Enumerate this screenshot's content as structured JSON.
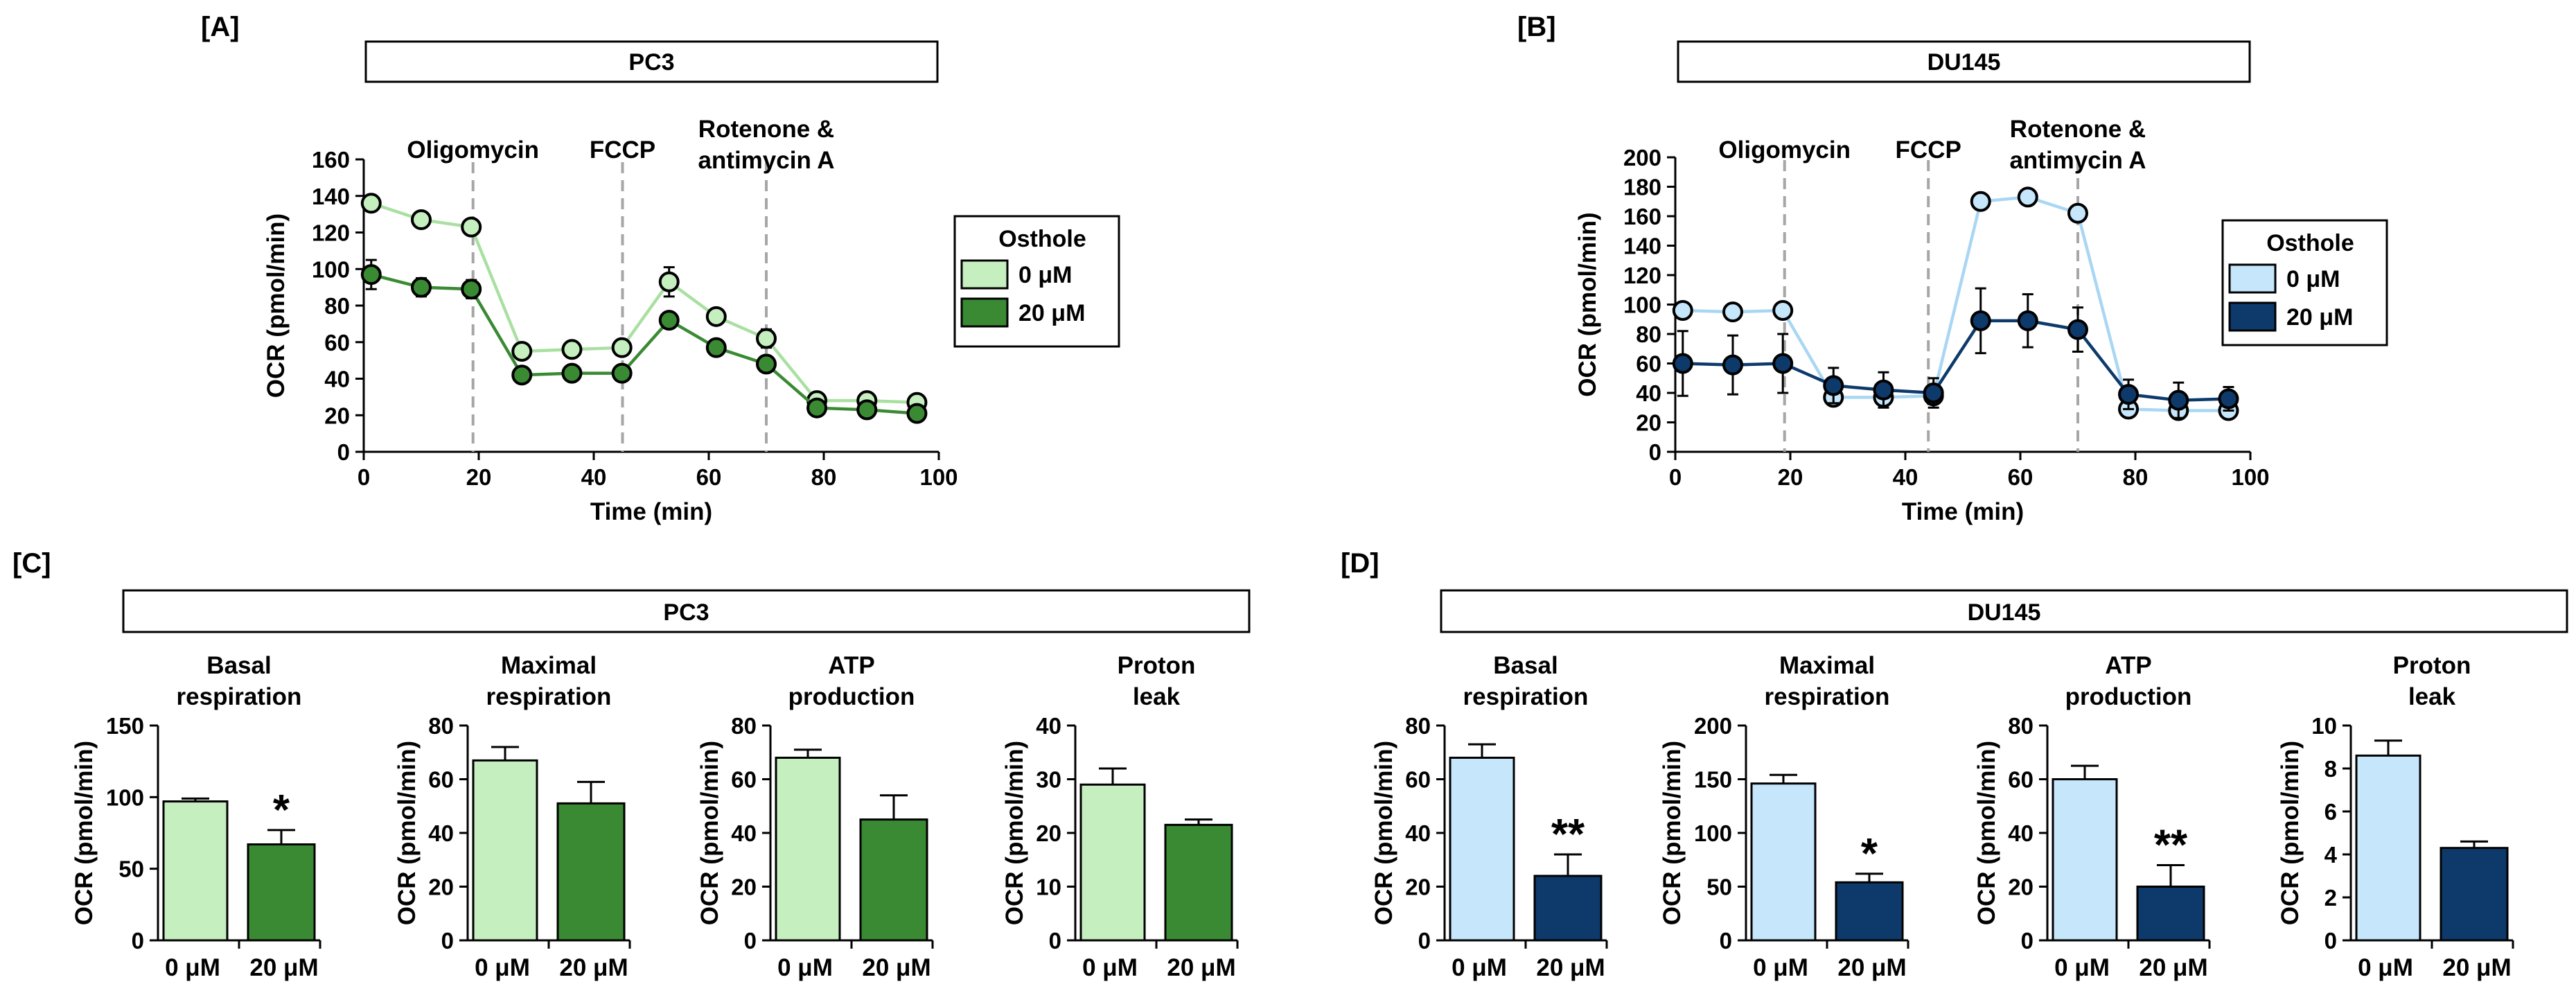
{
  "colors": {
    "pc3_light": "#c6efc0",
    "pc3_dark": "#3a8a34",
    "pc3_light_line": "#a9e0a1",
    "du_light": "#c5e6fb",
    "du_dark": "#0d3a6b",
    "du_light_line": "#a9d7f3",
    "vline": "#a6a6a6"
  },
  "chart_data": [
    {
      "id": "A",
      "panel_label": "[A]",
      "type": "line",
      "title": "PC3",
      "xlabel": "Time (min)",
      "ylabel": "OCR (pmol/min)",
      "xlim": [
        0,
        100
      ],
      "ylim": [
        0,
        160
      ],
      "xticks": [
        0,
        20,
        40,
        60,
        80,
        100
      ],
      "yticks": [
        0,
        20,
        40,
        60,
        80,
        100,
        120,
        140,
        160
      ],
      "x": [
        1.3,
        10,
        18.7,
        27.5,
        36.2,
        44.9,
        53.1,
        61.3,
        70,
        78.8,
        87.5,
        96.2
      ],
      "injections": [
        {
          "x": 19,
          "lines": [
            "Oligomycin"
          ]
        },
        {
          "x": 45,
          "lines": [
            "FCCP"
          ]
        },
        {
          "x": 70,
          "lines": [
            "Rotenone &",
            "antimycin A"
          ]
        }
      ],
      "legend": {
        "title": "Osthole",
        "position": "right"
      },
      "series": [
        {
          "name": "0 μM",
          "tone": "light",
          "values": [
            136,
            127,
            123,
            55,
            56,
            57,
            93,
            74,
            62,
            28,
            28,
            27
          ],
          "errors": [
            3,
            2,
            3,
            3,
            2,
            3,
            8,
            3,
            5,
            3,
            3,
            3
          ]
        },
        {
          "name": "20 μM",
          "tone": "dark",
          "values": [
            97,
            90,
            89,
            42,
            43,
            43,
            72,
            57,
            48,
            24,
            23,
            21
          ],
          "errors": [
            8,
            5,
            5,
            2,
            2,
            2,
            3,
            2,
            2,
            2,
            2,
            2
          ]
        }
      ]
    },
    {
      "id": "B",
      "panel_label": "[B]",
      "type": "line",
      "title": "DU145",
      "xlabel": "Time (min)",
      "ylabel": "OCR (pmol/min)",
      "xlim": [
        0,
        100
      ],
      "ylim": [
        0,
        200
      ],
      "xticks": [
        0,
        20,
        40,
        60,
        80,
        100
      ],
      "yticks": [
        0,
        20,
        40,
        60,
        80,
        100,
        120,
        140,
        160,
        180,
        200
      ],
      "x": [
        1.3,
        10,
        18.7,
        27.5,
        36.2,
        44.9,
        53.1,
        61.3,
        70,
        78.8,
        87.5,
        96.2
      ],
      "injections": [
        {
          "x": 19,
          "lines": [
            "Oligomycin"
          ]
        },
        {
          "x": 44,
          "lines": [
            "FCCP"
          ]
        },
        {
          "x": 70,
          "lines": [
            "Rotenone &",
            "antimycin A"
          ]
        }
      ],
      "legend": {
        "title": "Osthole",
        "position": "right"
      },
      "series": [
        {
          "name": "0 μM",
          "tone": "light",
          "values": [
            96,
            95,
            96,
            37,
            37,
            38,
            170,
            173,
            162,
            29,
            28,
            28
          ],
          "errors": [
            4,
            3,
            4,
            3,
            3,
            3,
            4,
            5,
            3,
            3,
            2,
            2
          ]
        },
        {
          "name": "20 μM",
          "tone": "dark",
          "values": [
            60,
            59,
            60,
            45,
            42,
            40,
            89,
            89,
            83,
            39,
            35,
            36
          ],
          "errors": [
            22,
            20,
            20,
            12,
            12,
            10,
            22,
            18,
            15,
            10,
            12,
            8
          ]
        }
      ]
    },
    {
      "id": "C",
      "panel_label": "[C]",
      "type": "bar",
      "title": "PC3",
      "palette": "pc3",
      "categories": [
        "0 μM",
        "20 μM"
      ],
      "ylabel": "OCR (pmol/min)",
      "subplots": [
        {
          "title": [
            "Basal",
            "respiration"
          ],
          "ylim": [
            0,
            150
          ],
          "yticks": [
            0,
            50,
            100,
            150
          ],
          "values": [
            97,
            67
          ],
          "errors": [
            2,
            10
          ],
          "sig": [
            "",
            "*"
          ]
        },
        {
          "title": [
            "Maximal",
            "respiration"
          ],
          "ylim": [
            0,
            80
          ],
          "yticks": [
            0,
            20,
            40,
            60,
            80
          ],
          "values": [
            67,
            51
          ],
          "errors": [
            5,
            8
          ],
          "sig": [
            "",
            ""
          ]
        },
        {
          "title": [
            "ATP",
            "production"
          ],
          "ylim": [
            0,
            80
          ],
          "yticks": [
            0,
            20,
            40,
            60,
            80
          ],
          "values": [
            68,
            45
          ],
          "errors": [
            3,
            9
          ],
          "sig": [
            "",
            ""
          ]
        },
        {
          "title": [
            "Proton",
            "leak"
          ],
          "ylim": [
            0,
            40
          ],
          "yticks": [
            0,
            10,
            20,
            30,
            40
          ],
          "values": [
            29,
            21.5
          ],
          "errors": [
            3,
            1
          ],
          "sig": [
            "",
            ""
          ]
        }
      ]
    },
    {
      "id": "D",
      "panel_label": "[D]",
      "type": "bar",
      "title": "DU145",
      "palette": "du",
      "categories": [
        "0 μM",
        "20 μM"
      ],
      "ylabel": "OCR (pmol/min)",
      "subplots": [
        {
          "title": [
            "Basal",
            "respiration"
          ],
          "ylim": [
            0,
            80
          ],
          "yticks": [
            0,
            20,
            40,
            60,
            80
          ],
          "values": [
            68,
            24
          ],
          "errors": [
            5,
            8
          ],
          "sig": [
            "",
            "**"
          ]
        },
        {
          "title": [
            "Maximal",
            "respiration"
          ],
          "ylim": [
            0,
            200
          ],
          "yticks": [
            0,
            50,
            100,
            150,
            200
          ],
          "values": [
            146,
            54
          ],
          "errors": [
            8,
            8
          ],
          "sig": [
            "",
            "*"
          ]
        },
        {
          "title": [
            "ATP",
            "production"
          ],
          "ylim": [
            0,
            80
          ],
          "yticks": [
            0,
            20,
            40,
            60,
            80
          ],
          "values": [
            60,
            20
          ],
          "errors": [
            5,
            8
          ],
          "sig": [
            "",
            "**"
          ]
        },
        {
          "title": [
            "Proton",
            "leak"
          ],
          "ylim": [
            0,
            10
          ],
          "yticks": [
            0,
            2,
            4,
            6,
            8,
            10
          ],
          "values": [
            8.6,
            4.3
          ],
          "errors": [
            0.7,
            0.3
          ],
          "sig": [
            "",
            ""
          ]
        }
      ]
    }
  ]
}
